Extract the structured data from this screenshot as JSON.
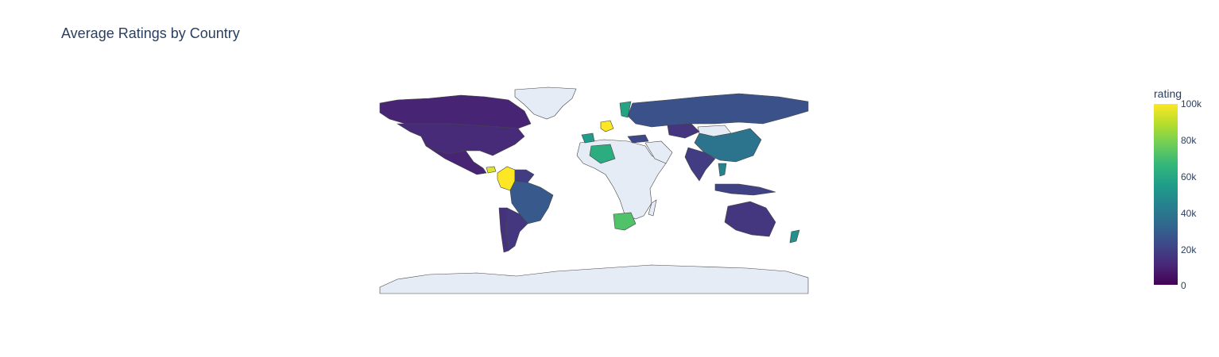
{
  "title": "Average Ratings by Country",
  "colors": {
    "ocean": "#ffffff",
    "no_data_land": "#e5ecf6",
    "border": "#444444",
    "text": "#2a3f5f"
  },
  "colorbar": {
    "title": "rating",
    "colorscale": "viridis",
    "range": [
      0,
      100000
    ],
    "tick_labels": [
      "100k",
      "80k",
      "60k",
      "40k",
      "20k",
      "0"
    ]
  },
  "chart_data": {
    "type": "choropleth",
    "title": "Average Ratings by Country",
    "colorbar_title": "rating",
    "zrange": [
      0,
      100000
    ],
    "locations": [
      {
        "name": "Canada",
        "value": 10000
      },
      {
        "name": "United States",
        "value": 12000
      },
      {
        "name": "Mexico",
        "value": 10000
      },
      {
        "name": "Colombia",
        "value": 100000
      },
      {
        "name": "Honduras",
        "value": 95000
      },
      {
        "name": "Venezuela",
        "value": 18000
      },
      {
        "name": "Brazil",
        "value": 28000
      },
      {
        "name": "Argentina",
        "value": 16000
      },
      {
        "name": "Chile",
        "value": 14000
      },
      {
        "name": "Spain",
        "value": 55000
      },
      {
        "name": "Algeria",
        "value": 62000
      },
      {
        "name": "Germany",
        "value": 100000
      },
      {
        "name": "Sweden",
        "value": 58000
      },
      {
        "name": "Russia",
        "value": 25000
      },
      {
        "name": "Kazakhstan",
        "value": 15000
      },
      {
        "name": "China",
        "value": 38000
      },
      {
        "name": "India",
        "value": 18000
      },
      {
        "name": "Turkey",
        "value": 22000
      },
      {
        "name": "Thailand",
        "value": 45000
      },
      {
        "name": "Indonesia",
        "value": 20000
      },
      {
        "name": "Australia",
        "value": 16000
      },
      {
        "name": "New Zealand",
        "value": 50000
      },
      {
        "name": "South Africa",
        "value": 72000
      }
    ]
  }
}
